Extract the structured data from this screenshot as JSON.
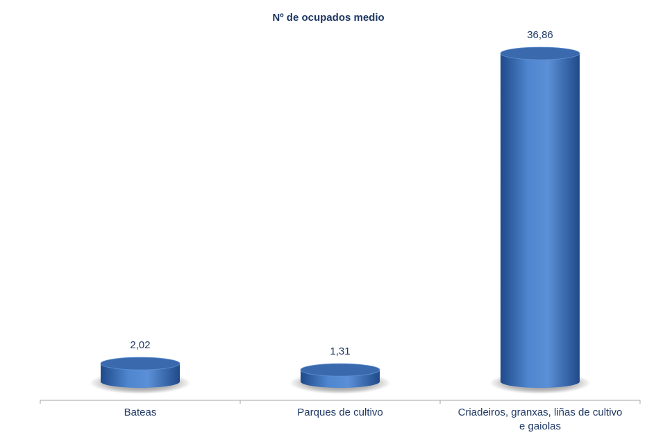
{
  "chart_data": {
    "type": "bar",
    "style": "3d-cylinder",
    "title": "Nº de ocupados medio",
    "categories": [
      [
        "Bateas"
      ],
      [
        "Parques de cultivo"
      ],
      [
        "Criadeiros, granxas, liñas de cultivo",
        "e gaiolas"
      ]
    ],
    "values": [
      2.02,
      1.31,
      36.86
    ],
    "data_labels": [
      "2,02",
      "1,31",
      "36,86"
    ],
    "xlabel": "",
    "ylabel": "",
    "ylim": [
      0,
      40
    ],
    "grid": false,
    "legend": "none",
    "colors": {
      "bar_light": "#5b8fd6",
      "bar_mid": "#3f72b8",
      "bar_dark": "#1f4a8a",
      "top": "#3a6aad",
      "text": "#1f3864",
      "axis": "#a6a6a6"
    }
  }
}
